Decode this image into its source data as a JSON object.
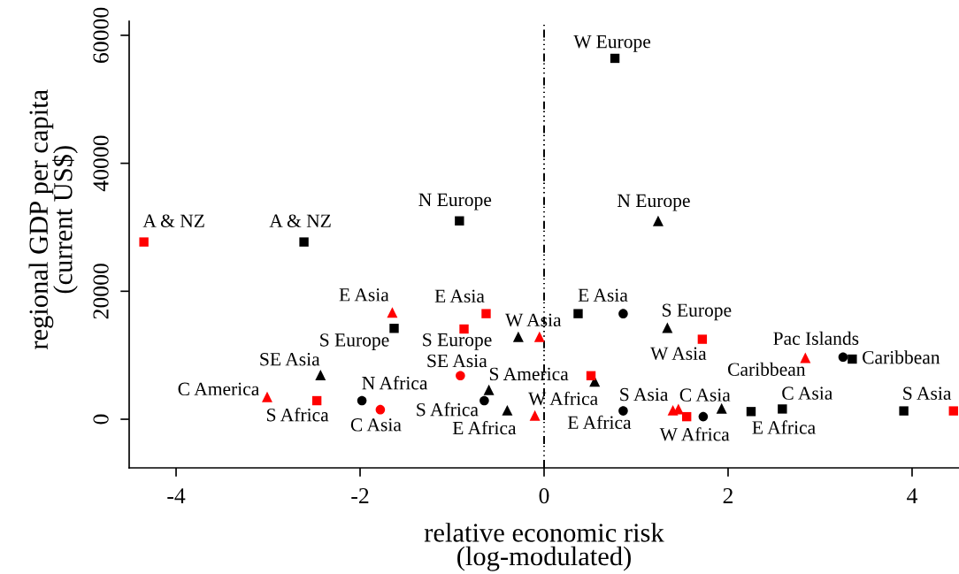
{
  "chart_data": {
    "type": "scatter",
    "xlabel": "relative economic risk\n(log-modulated)",
    "ylabel": "regional GDP per capita\n(current US$)",
    "xlim": [
      -4.51,
      4.51
    ],
    "ylim": [
      -7600,
      62200
    ],
    "xticks": [
      -4,
      -2,
      0,
      2,
      4
    ],
    "yticks": [
      0,
      20000,
      40000,
      60000
    ],
    "series": [
      {
        "color": "#000000",
        "marker": "square",
        "x": [
          -2.61,
          -0.92,
          0.77,
          -1.63,
          0.37,
          3.35,
          2.25,
          2.59,
          3.91
        ],
        "values": [
          27700,
          31000,
          56400,
          14200,
          16500,
          9400,
          1200,
          1600,
          1300
        ]
      },
      {
        "color": "#000000",
        "marker": "circle",
        "x": [
          -1.98,
          -0.65,
          0.86,
          0.86,
          1.73,
          3.25
        ],
        "values": [
          2900,
          2900,
          16500,
          1300,
          400,
          9700
        ]
      },
      {
        "color": "#000000",
        "marker": "triangle",
        "x": [
          1.24,
          -2.43,
          -0.28,
          1.34,
          -0.6,
          0.55,
          -0.4,
          1.93
        ],
        "values": [
          31000,
          6900,
          12900,
          14300,
          4600,
          5900,
          1400,
          1700
        ]
      },
      {
        "color": "#ff0000",
        "marker": "square",
        "x": [
          -4.35,
          -2.47,
          -0.63,
          -0.87,
          1.72,
          0.51,
          1.55,
          4.45
        ],
        "values": [
          27700,
          2900,
          16500,
          14100,
          12500,
          6800,
          400,
          1300
        ]
      },
      {
        "color": "#ff0000",
        "marker": "circle",
        "x": [
          -1.78,
          -0.91
        ],
        "values": [
          1500,
          6800
        ]
      },
      {
        "color": "#ff0000",
        "marker": "triangle",
        "x": [
          -1.65,
          -3.01,
          -0.05,
          2.84,
          -0.1,
          1.4,
          1.46
        ],
        "values": [
          16700,
          3500,
          12900,
          9600,
          600,
          1400,
          1600
        ]
      }
    ],
    "ref_lines": [
      {
        "axis": "x",
        "value": 0,
        "color": "#000000",
        "line_style": "dashdot"
      }
    ],
    "annotations": [
      {
        "text": "A & NZ",
        "x": -4.35,
        "y": 27700
      },
      {
        "text": "A & NZ",
        "x": -2.61,
        "y": 27700
      },
      {
        "text": "N Europe",
        "x": -0.92,
        "y": 31000
      },
      {
        "text": "W Europe",
        "x": 0.77,
        "y": 56400
      },
      {
        "text": "N Europe",
        "x": 1.24,
        "y": 31000
      },
      {
        "text": "E Asia",
        "x": -1.65,
        "y": 16700
      },
      {
        "text": "S Europe",
        "x": -1.63,
        "y": 14200
      },
      {
        "text": "SE Asia",
        "x": -2.43,
        "y": 6900
      },
      {
        "text": "C America",
        "x": -3.01,
        "y": 3500
      },
      {
        "text": "S Africa",
        "x": -2.47,
        "y": 2900
      },
      {
        "text": "N Africa",
        "x": -1.98,
        "y": 2900
      },
      {
        "text": "C Asia",
        "x": -1.78,
        "y": 1500
      },
      {
        "text": "E Asia",
        "x": -0.63,
        "y": 16500
      },
      {
        "text": "S Europe",
        "x": -0.87,
        "y": 14100
      },
      {
        "text": "SE Asia",
        "x": -0.91,
        "y": 6800
      },
      {
        "text": "W Asia",
        "x": -0.05,
        "y": 12900
      },
      {
        "text": "E Asia",
        "x": 0.37,
        "y": 16500
      },
      {
        "text": "S Europe",
        "x": 1.34,
        "y": 14300
      },
      {
        "text": "W Asia",
        "x": 1.72,
        "y": 12500
      },
      {
        "text": "Pac Islands",
        "x": 2.84,
        "y": 9600
      },
      {
        "text": "Caribbean",
        "x": 2.84,
        "y": 9600
      },
      {
        "text": "Caribbean",
        "x": 3.35,
        "y": 9400
      },
      {
        "text": "S America",
        "x": -0.6,
        "y": 4600
      },
      {
        "text": "S Africa",
        "x": -0.65,
        "y": 2900
      },
      {
        "text": "E Africa",
        "x": -0.4,
        "y": 1400
      },
      {
        "text": "W Africa",
        "x": -0.1,
        "y": 600
      },
      {
        "text": "S Asia",
        "x": 1.4,
        "y": 1400
      },
      {
        "text": "E Africa",
        "x": 0.86,
        "y": 1300
      },
      {
        "text": "C Asia",
        "x": 1.46,
        "y": 1600
      },
      {
        "text": "W Africa",
        "x": 1.55,
        "y": 400
      },
      {
        "text": "C Asia",
        "x": 2.59,
        "y": 1600
      },
      {
        "text": "E Africa",
        "x": 2.25,
        "y": 1200
      },
      {
        "text": "S Asia",
        "x": 3.91,
        "y": 1300
      }
    ]
  }
}
